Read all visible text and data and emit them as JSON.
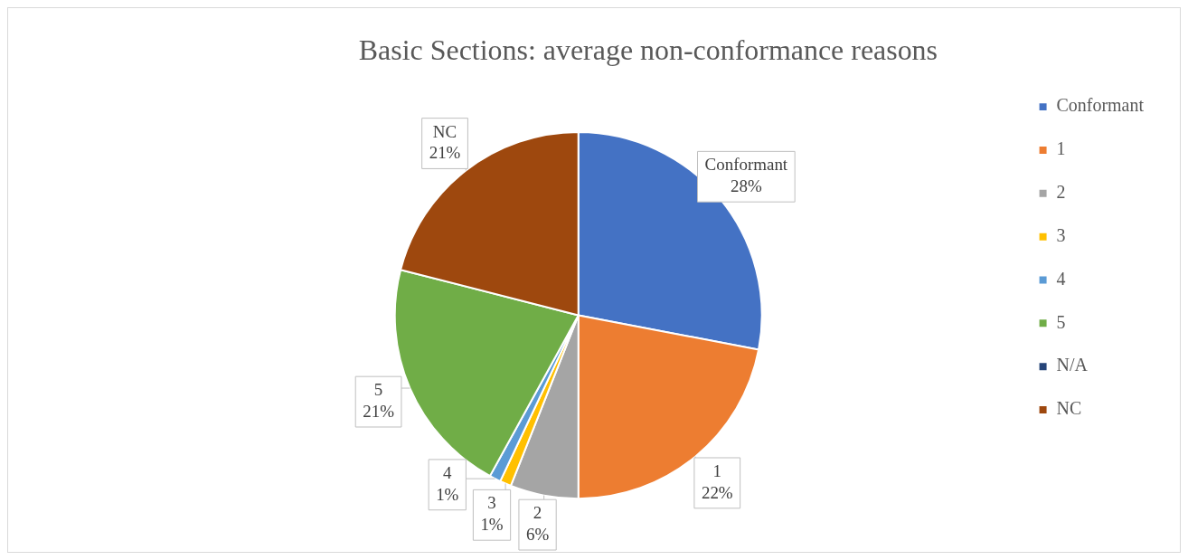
{
  "chart_data": {
    "type": "pie",
    "title": "Basic Sections: average non-conformance reasons",
    "categories": [
      "Conformant",
      "1",
      "2",
      "3",
      "4",
      "5",
      "N/A",
      "NC"
    ],
    "values": [
      28,
      22,
      6,
      1,
      1,
      21,
      0,
      21
    ],
    "value_labels": [
      "28%",
      "22%",
      "6%",
      "1%",
      "1%",
      "21%",
      null,
      "21%"
    ],
    "colors": [
      "#4472c4",
      "#ed7d31",
      "#a5a5a5",
      "#ffc000",
      "#5b9bd5",
      "#70ad47",
      "#264478",
      "#9e480e"
    ],
    "legend": "right"
  }
}
